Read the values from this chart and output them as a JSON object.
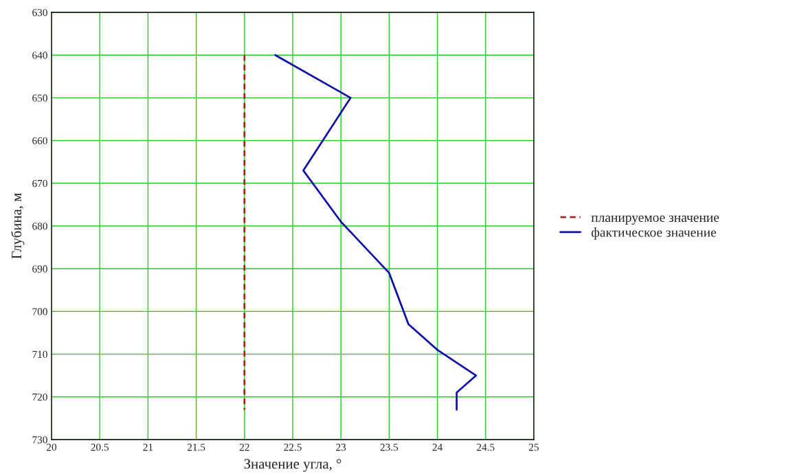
{
  "chart_data": {
    "type": "line",
    "xlabel": "Значение угла, °",
    "ylabel": "Глубина, м",
    "series": [
      {
        "name": "планируемое значение",
        "color": "#a02a1a",
        "line_style": "dashed",
        "x": [
          22,
          22
        ],
        "values": [
          640,
          723
        ]
      },
      {
        "name": "фактическое значение",
        "color": "#1010a8",
        "line_style": "solid",
        "x": [
          22.32,
          23.1,
          22.61,
          23.0,
          23.25,
          23.5,
          23.7,
          24.0,
          24.4,
          24.2,
          24.2
        ],
        "values": [
          640,
          650,
          667,
          679,
          685,
          691,
          703,
          709,
          715,
          719,
          723
        ]
      }
    ],
    "xlim": [
      20,
      25
    ],
    "xticks": [
      20,
      20.5,
      21,
      21.5,
      22,
      22.5,
      23,
      23.5,
      24,
      24.5,
      25
    ],
    "ylim": [
      730,
      630
    ],
    "yticks": [
      630,
      640,
      650,
      660,
      670,
      680,
      690,
      700,
      710,
      720,
      730
    ],
    "grid": true,
    "legend": "right",
    "marker": "none"
  }
}
